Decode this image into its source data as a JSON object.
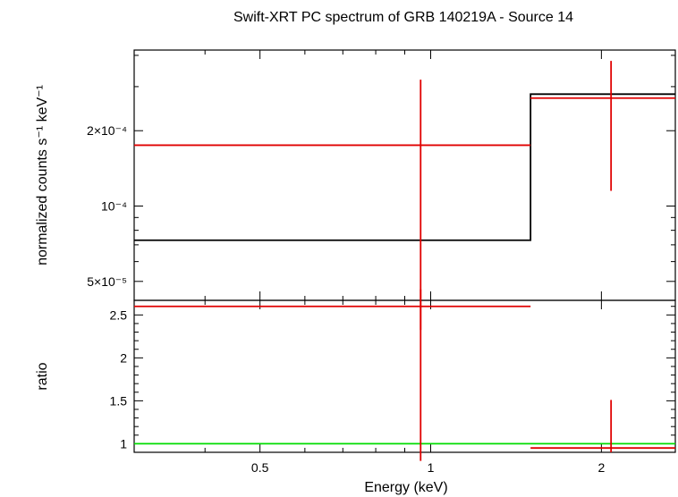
{
  "chart_data": [
    {
      "type": "line",
      "panel": "spectrum",
      "title": "Swift-XRT PC spectrum of GRB 140219A - Source 14",
      "xlabel": "",
      "ylabel": "normalized counts s⁻¹ keV⁻¹",
      "xscale": "log",
      "yscale": "log",
      "xlim": [
        0.3,
        2.7
      ],
      "ylim": [
        4.2e-05,
        0.00042
      ],
      "ytick_labels": [
        {
          "value": 5e-05,
          "label": "5×10⁻⁵"
        },
        {
          "value": 0.0001,
          "label": "10⁻⁴"
        },
        {
          "value": 0.0002,
          "label": "2×10⁻⁴"
        }
      ],
      "series": [
        {
          "kind": "model-step",
          "color": "#000000",
          "steps": [
            {
              "x0": 0.3,
              "x1": 1.5,
              "y": 7.3e-05
            },
            {
              "x0": 1.5,
              "x1": 2.7,
              "y": 0.00028
            }
          ]
        },
        {
          "kind": "data-with-errors",
          "color": "#e00000",
          "points": [
            {
              "x": 0.96,
              "xlo": 0.3,
              "xhi": 1.5,
              "y": 0.000175,
              "ylo": 3.2e-05,
              "yhi": 0.00032
            },
            {
              "x": 2.08,
              "xlo": 1.5,
              "xhi": 2.7,
              "y": 0.00027,
              "ylo": 0.000115,
              "yhi": 0.00038
            }
          ]
        }
      ]
    },
    {
      "type": "line",
      "panel": "ratio",
      "xlabel": "Energy (keV)",
      "ylabel": "ratio",
      "xscale": "log",
      "xlim": [
        0.3,
        2.7
      ],
      "ylim": [
        0.9,
        2.67
      ],
      "x_tick_labels": [
        {
          "value": 0.5,
          "label": "0.5"
        },
        {
          "value": 1,
          "label": "1"
        },
        {
          "value": 2,
          "label": "2"
        }
      ],
      "y_tick_labels": [
        {
          "value": 1,
          "label": "1"
        },
        {
          "value": 1.5,
          "label": "1.5"
        },
        {
          "value": 2,
          "label": "2"
        },
        {
          "value": 2.5,
          "label": "2.5"
        }
      ],
      "series": [
        {
          "kind": "reference-line",
          "color": "#00dd00",
          "y": 1
        },
        {
          "kind": "data-with-errors",
          "color": "#e00000",
          "points": [
            {
              "x": 0.96,
              "xlo": 0.3,
              "xhi": 1.5,
              "y": 2.6,
              "ylo": 0.8,
              "yhi": 2.8
            },
            {
              "x": 2.08,
              "xlo": 1.5,
              "xhi": 2.7,
              "y": 0.95,
              "ylo": 0.9,
              "yhi": 1.51
            }
          ]
        }
      ]
    }
  ]
}
